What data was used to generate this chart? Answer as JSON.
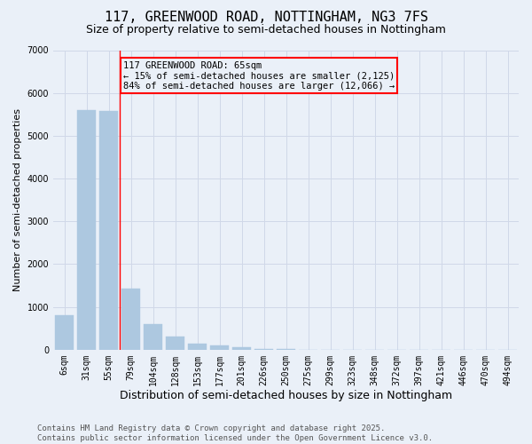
{
  "title": "117, GREENWOOD ROAD, NOTTINGHAM, NG3 7FS",
  "subtitle": "Size of property relative to semi-detached houses in Nottingham",
  "xlabel": "Distribution of semi-detached houses by size in Nottingham",
  "ylabel": "Number of semi-detached properties",
  "categories": [
    "6sqm",
    "31sqm",
    "55sqm",
    "79sqm",
    "104sqm",
    "128sqm",
    "153sqm",
    "177sqm",
    "201sqm",
    "226sqm",
    "250sqm",
    "275sqm",
    "299sqm",
    "323sqm",
    "348sqm",
    "372sqm",
    "397sqm",
    "421sqm",
    "446sqm",
    "470sqm",
    "494sqm"
  ],
  "values": [
    800,
    5600,
    5580,
    1420,
    600,
    300,
    150,
    100,
    50,
    20,
    10,
    5,
    3,
    2,
    2,
    1,
    1,
    1,
    1,
    1,
    1
  ],
  "bar_color": "#adc8e0",
  "bar_edge_color": "#adc8e0",
  "grid_color": "#d0d8e8",
  "background_color": "#eaf0f8",
  "red_line_x": 2.5,
  "annotation_text": "117 GREENWOOD ROAD: 65sqm\n← 15% of semi-detached houses are smaller (2,125)\n84% of semi-detached houses are larger (12,066) →",
  "footer_line1": "Contains HM Land Registry data © Crown copyright and database right 2025.",
  "footer_line2": "Contains public sector information licensed under the Open Government Licence v3.0.",
  "ylim": [
    0,
    7000
  ],
  "title_fontsize": 11,
  "subtitle_fontsize": 9,
  "xlabel_fontsize": 9,
  "ylabel_fontsize": 8,
  "tick_fontsize": 7,
  "annotation_fontsize": 7.5,
  "footer_fontsize": 6.5
}
